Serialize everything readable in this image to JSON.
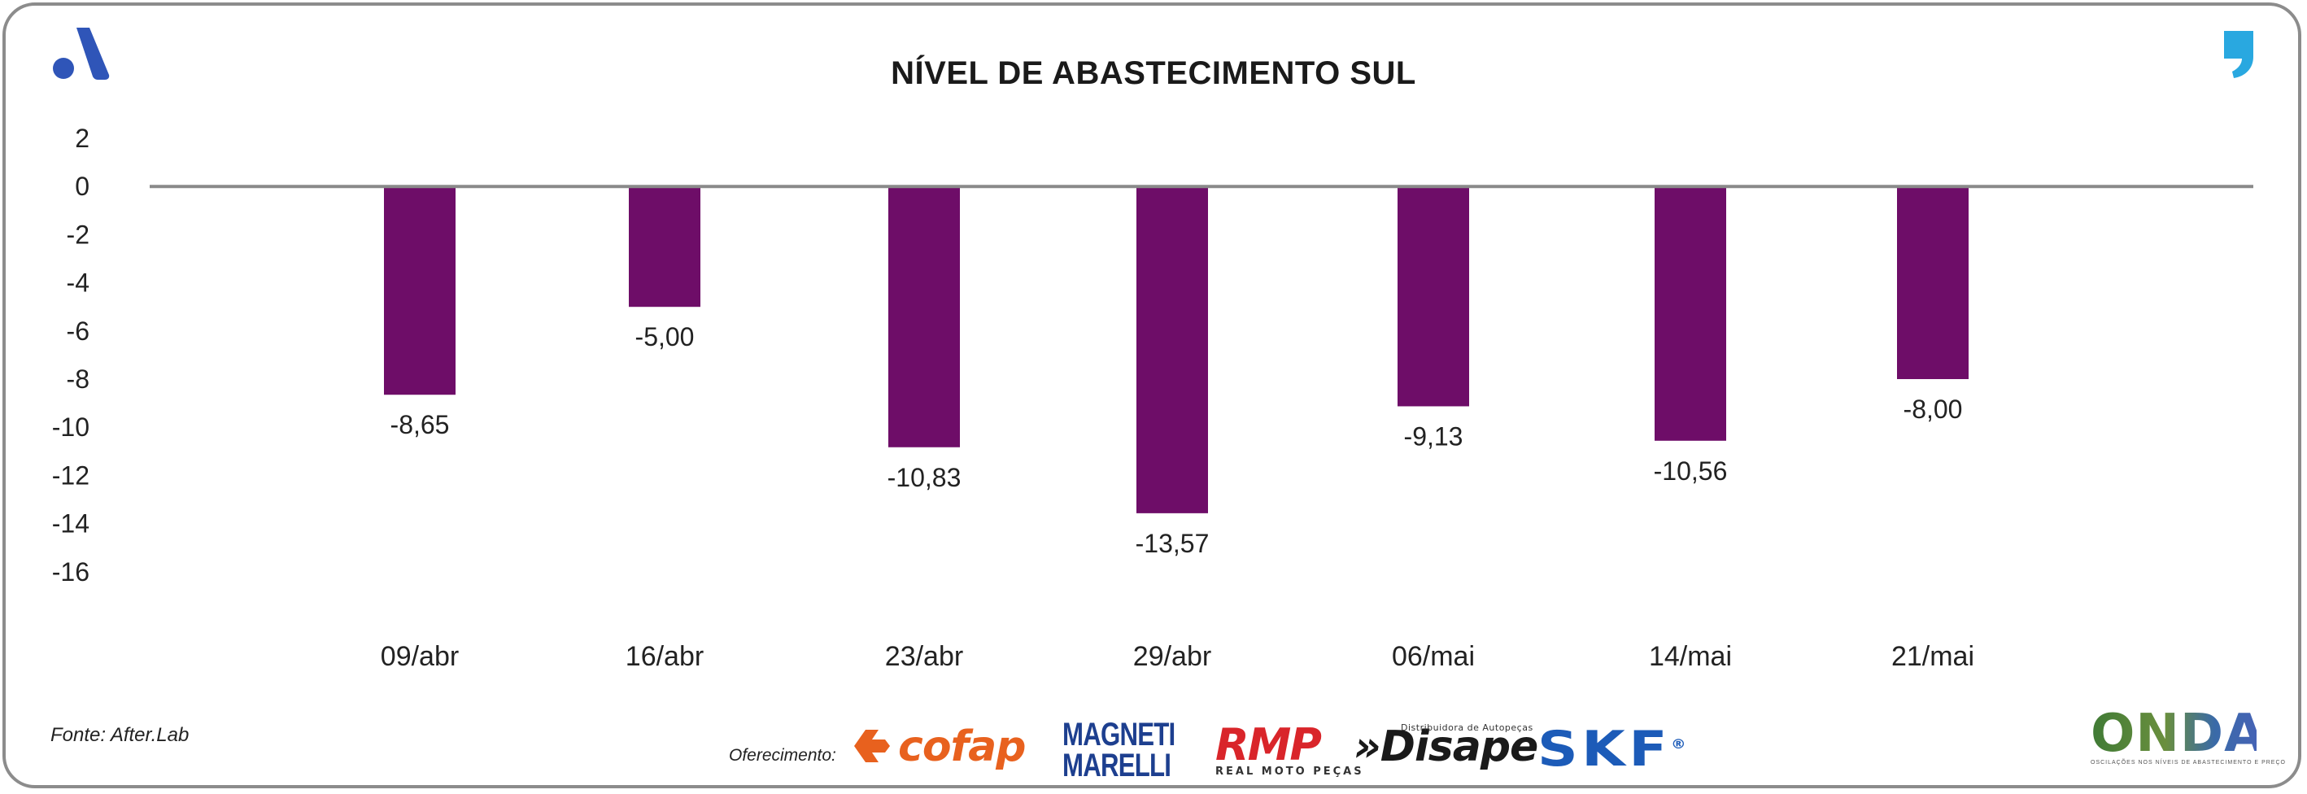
{
  "chart_data": {
    "type": "bar",
    "title": "NÍVEL DE ABASTECIMENTO SUL",
    "categories": [
      "09/abr",
      "16/abr",
      "23/abr",
      "29/abr",
      "06/mai",
      "14/mai",
      "21/mai"
    ],
    "values": [
      -8.65,
      -5.0,
      -10.83,
      -13.57,
      -9.13,
      -10.56,
      -8.0
    ],
    "value_labels": [
      "-8,65",
      "-5,00",
      "-10,83",
      "-13,57",
      "-9,13",
      "-10,56",
      "-8,00"
    ],
    "yticks": [
      2,
      0,
      -2,
      -4,
      -6,
      -8,
      -10,
      -12,
      -14,
      -16
    ],
    "ylim": [
      -16,
      2
    ],
    "xlabel": "",
    "ylabel": "",
    "grid": false,
    "bar_color": "#6e0d68",
    "zero_line_color": "#8a8a8a"
  },
  "footer": {
    "source": "Fonte: After.Lab",
    "sponsor_label": "Oferecimento:",
    "sponsors": {
      "cofap": "cofap",
      "magneti_line1": "MAGNETI",
      "magneti_line2": "MARELLI",
      "rmp": "RMP",
      "rmp_sub": "REAL MOTO PEÇAS",
      "disape": "»Disape",
      "disape_sub": "Distribuidora de Autopeças",
      "skf": "SKF",
      "skf_reg": "®"
    },
    "onda": {
      "word": "ONDA",
      "tagline": "OSCILAÇÕES NOS NÍVEIS DE ABASTECIMENTO E PREÇO"
    }
  },
  "icons": {
    "brand_logo": "after-lab-logo-icon",
    "quote_logo": "quote-mark-icon"
  },
  "colors": {
    "brand_blue": "#2f55b8",
    "quote_blue": "#29a8e0",
    "frame": "#8c8c8c"
  }
}
